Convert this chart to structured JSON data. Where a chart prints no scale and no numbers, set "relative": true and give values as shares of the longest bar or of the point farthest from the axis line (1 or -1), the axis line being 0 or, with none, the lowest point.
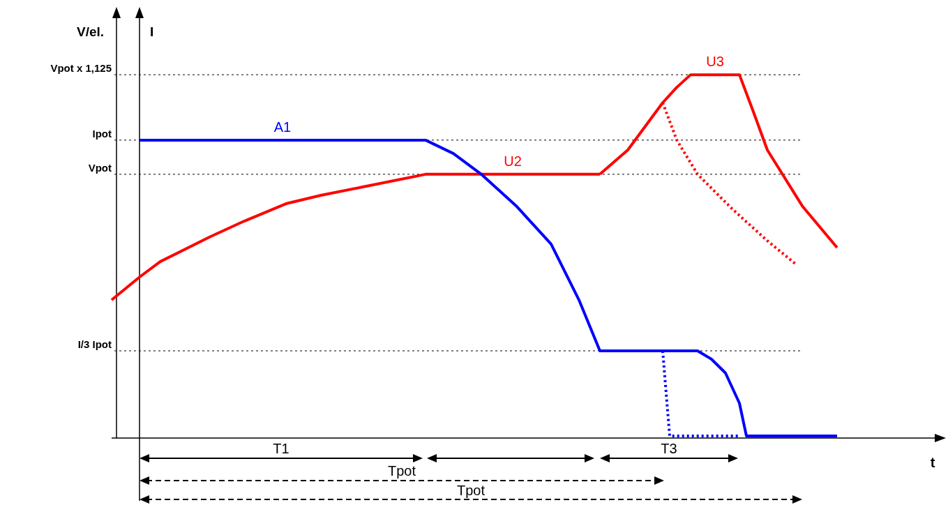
{
  "chart_data": {
    "type": "line",
    "relative": true,
    "ylabel": "V/el.",
    "y2label": "I",
    "categories": [
      null,
      null,
      null,
      null,
      null,
      null,
      null,
      null,
      null,
      null,
      null,
      null,
      null,
      null,
      null,
      null,
      null,
      null,
      null,
      null,
      null,
      null,
      null,
      null,
      null,
      null,
      null,
      null,
      null,
      null,
      null,
      null,
      null,
      null,
      null,
      null,
      null,
      null,
      null,
      null,
      null,
      null,
      null,
      null,
      null,
      null,
      null,
      null,
      null,
      null,
      null,
      null,
      null,
      null,
      null,
      null,
      null,
      null,
      null,
      null,
      null,
      null,
      null,
      null,
      null,
      null,
      null,
      null,
      null,
      null,
      null,
      null,
      null,
      null,
      null,
      null,
      null,
      null,
      null,
      null,
      null,
      null,
      null,
      null,
      null,
      null,
      null,
      null,
      null,
      null,
      null,
      null,
      null,
      null,
      null,
      null,
      null,
      null,
      null,
      null,
      null,
      null,
      null,
      null,
      null
    ],
    "series": [
      {
        "name": "A1",
        "color": "#0000ff",
        "values": [
          null,
          null,
          null,
          null,
          0.82,
          null,
          null,
          null,
          null,
          null,
          null,
          null,
          null,
          null,
          null,
          null,
          null,
          null,
          null,
          null,
          null,
          null,
          null,
          null,
          null,
          null,
          null,
          null,
          null,
          null,
          null,
          null,
          null,
          null,
          null,
          null,
          null,
          null,
          null,
          null,
          null,
          null,
          null,
          null,
          null,
          0.82,
          null,
          null,
          null,
          0.783,
          null,
          null,
          null,
          0.726,
          null,
          null,
          null,
          null,
          0.639,
          null,
          null,
          null,
          null,
          0.534,
          null,
          null,
          null,
          0.38,
          null,
          null,
          0.24,
          null,
          null,
          null,
          null,
          null,
          null,
          null,
          null,
          null,
          null,
          null,
          null,
          null,
          0.24,
          null,
          0.217,
          null,
          0.179,
          null,
          0.096,
          0.006,
          null,
          null,
          null,
          null,
          null,
          null,
          null,
          null,
          null,
          null,
          null,
          null,
          0.006
        ]
      },
      {
        "name": "U2",
        "color": "#ff0000",
        "values": [
          0.38,
          null,
          null,
          null,
          0.443,
          null,
          null,
          0.486,
          null,
          null,
          null,
          null,
          null,
          null,
          0.553,
          null,
          null,
          null,
          null,
          0.597,
          null,
          null,
          null,
          null,
          null,
          0.645,
          null,
          null,
          null,
          null,
          0.668,
          null,
          null,
          null,
          null,
          null,
          0.691,
          null,
          null,
          null,
          null,
          null,
          null,
          null,
          null,
          0.726,
          null,
          null,
          null,
          null,
          null,
          null,
          null,
          null,
          null,
          null,
          null,
          null,
          null,
          null,
          null,
          null,
          null,
          null,
          null,
          null,
          null,
          null,
          null,
          null,
          0.726,
          null,
          null,
          null,
          null,
          null,
          null,
          null,
          null,
          null,
          null,
          null,
          null,
          null,
          null,
          null,
          null,
          null,
          null,
          null,
          null,
          null,
          null,
          null,
          null,
          null,
          null,
          null,
          null,
          null,
          null,
          null,
          null,
          null,
          null
        ]
      },
      {
        "name": "U3",
        "color": "#ff0000",
        "values": [
          null,
          null,
          null,
          null,
          null,
          null,
          null,
          null,
          null,
          null,
          null,
          null,
          null,
          null,
          null,
          null,
          null,
          null,
          null,
          null,
          null,
          null,
          null,
          null,
          null,
          null,
          null,
          null,
          null,
          null,
          null,
          null,
          null,
          null,
          null,
          null,
          null,
          null,
          null,
          null,
          null,
          null,
          null,
          null,
          null,
          null,
          null,
          null,
          null,
          null,
          null,
          null,
          null,
          null,
          null,
          null,
          null,
          null,
          null,
          null,
          null,
          null,
          null,
          null,
          null,
          null,
          null,
          null,
          null,
          null,
          0.726,
          null,
          null,
          null,
          0.793,
          null,
          null,
          null,
          null,
          0.923,
          null,
          0.965,
          null,
          1,
          null,
          null,
          null,
          null,
          null,
          null,
          1,
          null,
          0.898,
          null,
          0.793,
          null,
          null,
          null,
          null,
          0.639,
          null,
          null,
          null,
          null,
          0.524
        ]
      },
      {
        "color": "#ff0000",
        "line_style": "dotted",
        "values": [
          null,
          null,
          null,
          null,
          null,
          null,
          null,
          null,
          null,
          null,
          null,
          null,
          null,
          null,
          null,
          null,
          null,
          null,
          null,
          null,
          null,
          null,
          null,
          null,
          null,
          null,
          null,
          null,
          null,
          null,
          null,
          null,
          null,
          null,
          null,
          null,
          null,
          null,
          null,
          null,
          null,
          null,
          null,
          null,
          null,
          null,
          null,
          null,
          null,
          null,
          null,
          null,
          null,
          null,
          null,
          null,
          null,
          null,
          null,
          null,
          null,
          null,
          null,
          null,
          null,
          null,
          null,
          null,
          null,
          null,
          null,
          null,
          null,
          null,
          null,
          null,
          null,
          null,
          null,
          0.923,
          null,
          0.821,
          null,
          null,
          0.726,
          null,
          null,
          null,
          null,
          0.63,
          null,
          null,
          null,
          null,
          0.543,
          null,
          null,
          null,
          0.48,
          null,
          null,
          null,
          null,
          null,
          null
        ]
      },
      {
        "color": "#0000ff",
        "line_style": "dotted",
        "values": [
          null,
          null,
          null,
          null,
          null,
          null,
          null,
          null,
          null,
          null,
          null,
          null,
          null,
          null,
          null,
          null,
          null,
          null,
          null,
          null,
          null,
          null,
          null,
          null,
          null,
          null,
          null,
          null,
          null,
          null,
          null,
          null,
          null,
          null,
          null,
          null,
          null,
          null,
          null,
          null,
          null,
          null,
          null,
          null,
          null,
          null,
          null,
          null,
          null,
          null,
          null,
          null,
          null,
          null,
          null,
          null,
          null,
          null,
          null,
          null,
          null,
          null,
          null,
          null,
          null,
          null,
          null,
          null,
          null,
          null,
          null,
          null,
          null,
          null,
          null,
          null,
          null,
          null,
          null,
          0.24,
          0.006,
          null,
          null,
          null,
          null,
          null,
          null,
          null,
          null,
          null,
          0.006,
          null,
          null,
          null,
          null,
          null,
          null,
          null,
          null,
          null,
          null,
          null,
          null,
          null,
          null
        ]
      }
    ],
    "ref_lines": [
      {
        "axis": "y",
        "value": 1,
        "label": "Vpot x 1,125",
        "line_style": "dotted"
      },
      {
        "axis": "y",
        "value": 0.82,
        "label": "Ipot",
        "line_style": "dotted"
      },
      {
        "axis": "y",
        "value": 0.726,
        "label": "Vpot",
        "line_style": "dotted"
      },
      {
        "axis": "y",
        "value": 0.24,
        "label": "I/3 Ipot",
        "line_style": "dotted"
      }
    ],
    "annotations": [
      "T1",
      "Tpot",
      "Tpot",
      "T3",
      "t"
    ]
  }
}
